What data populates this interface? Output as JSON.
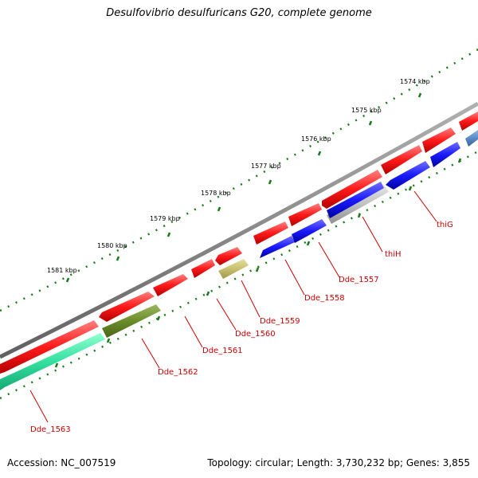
{
  "header": {
    "title": "Desulfovibrio desulfuricans G20, complete genome"
  },
  "footer": {
    "accession": "Accession: NC_007519",
    "topology": "Topology: circular; Length: 3,730,232 bp; Genes: 3,855"
  },
  "ruler": {
    "tick_labels": [
      "1574 kbp",
      "1575 kbp",
      "1576 kbp",
      "1577 kbp",
      "1578 kbp",
      "1579 kbp",
      "1580 kbp",
      "1581 kbp"
    ]
  },
  "genes": [
    {
      "label": "thiG"
    },
    {
      "label": "thiH"
    },
    {
      "label": "Dde_1557"
    },
    {
      "label": "Dde_1558"
    },
    {
      "label": "Dde_1559"
    },
    {
      "label": "Dde_1560"
    },
    {
      "label": "Dde_1561"
    },
    {
      "label": "Dde_1562"
    },
    {
      "label": "Dde_1563"
    }
  ],
  "colors": {
    "backbone": "#8a8a8a",
    "forward_cds": "#ff1a1a",
    "reverse_cds": "#1a1aff",
    "rna": "#c0c0c0",
    "olive": "#6b8c2a",
    "khaki": "#c8c070",
    "teal": "#33e0a0",
    "steel": "#5a8ac8",
    "label_red": "#cc0000",
    "tick_green": "#1a7a1a"
  }
}
